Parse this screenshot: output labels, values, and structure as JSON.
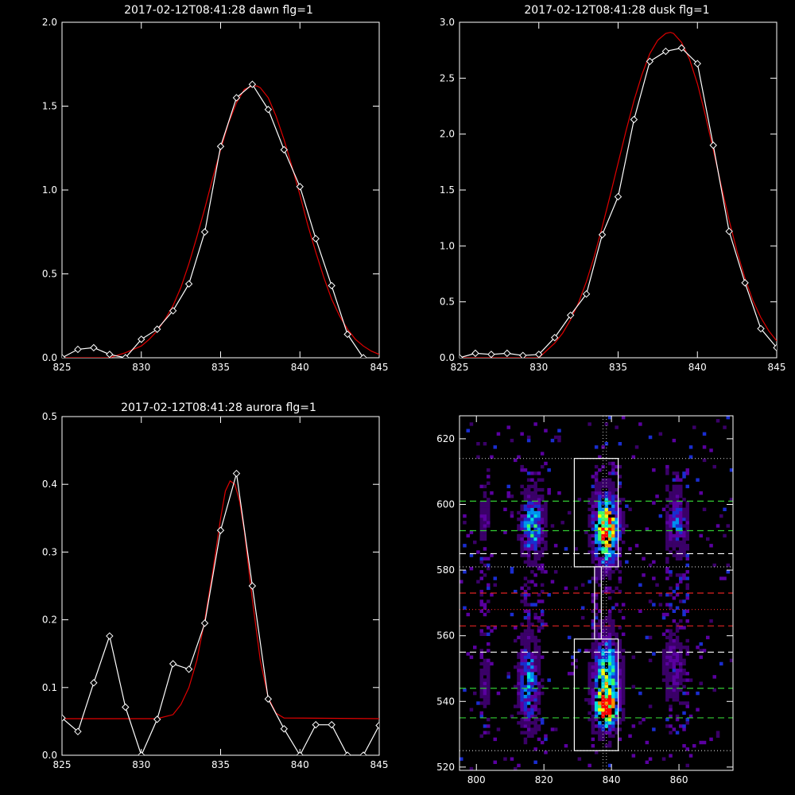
{
  "chart_data": [
    {
      "id": "dawn",
      "type": "line",
      "title": "2017-02-12T08:41:28 dawn flg=1",
      "xlim": [
        825,
        845
      ],
      "ylim": [
        0,
        2.0
      ],
      "xticks": [
        825,
        830,
        835,
        840,
        845
      ],
      "yticks": [
        0.0,
        0.5,
        1.0,
        1.5,
        2.0
      ],
      "xtick_labels": [
        "825",
        "830",
        "835",
        "840",
        "845"
      ],
      "ytick_labels": [
        "0.0",
        "0.5",
        "1.0",
        "1.5",
        "2.0"
      ],
      "series": [
        {
          "style": "observed",
          "color": "#ffffff",
          "marker": "diamond",
          "x": [
            825,
            826,
            827,
            828,
            829,
            830,
            831,
            832,
            833,
            834,
            835,
            836,
            837,
            838,
            839,
            840,
            841,
            842,
            843,
            844
          ],
          "y": [
            0.0,
            0.05,
            0.06,
            0.02,
            0.0,
            0.11,
            0.17,
            0.28,
            0.44,
            0.75,
            1.26,
            1.55,
            1.63,
            1.48,
            1.24,
            1.02,
            0.71,
            0.43,
            0.14,
            0.0
          ]
        },
        {
          "style": "fit",
          "color": "#e00000",
          "model": "gaussian",
          "x": [
            825,
            826,
            827,
            828,
            829,
            830,
            830.5,
            831,
            831.5,
            832,
            832.5,
            833,
            833.5,
            834,
            834.5,
            835,
            835.5,
            836,
            836.5,
            837,
            837.3,
            837.5,
            838,
            838.5,
            839,
            839.5,
            840,
            840.5,
            841,
            841.5,
            842,
            842.5,
            843,
            843.5,
            844,
            844.5,
            845
          ],
          "y": [
            0.0,
            0.0,
            0.0,
            0.0,
            0.03,
            0.07,
            0.11,
            0.16,
            0.23,
            0.31,
            0.42,
            0.56,
            0.72,
            0.89,
            1.07,
            1.24,
            1.4,
            1.52,
            1.6,
            1.62,
            1.62,
            1.61,
            1.55,
            1.44,
            1.3,
            1.14,
            0.97,
            0.79,
            0.63,
            0.48,
            0.35,
            0.25,
            0.17,
            0.11,
            0.07,
            0.04,
            0.02
          ]
        }
      ]
    },
    {
      "id": "dusk",
      "type": "line",
      "title": "2017-02-12T08:41:28 dusk flg=1",
      "xlim": [
        825,
        845
      ],
      "ylim": [
        0,
        3.0
      ],
      "xticks": [
        825,
        830,
        835,
        840,
        845
      ],
      "yticks": [
        0.0,
        0.5,
        1.0,
        1.5,
        2.0,
        2.5,
        3.0
      ],
      "xtick_labels": [
        "825",
        "830",
        "835",
        "840",
        "845"
      ],
      "ytick_labels": [
        "0.0",
        "0.5",
        "1.0",
        "1.5",
        "2.0",
        "2.5",
        "3.0"
      ],
      "series": [
        {
          "style": "observed",
          "color": "#ffffff",
          "marker": "diamond",
          "x": [
            825,
            826,
            827,
            828,
            829,
            830,
            831,
            832,
            833,
            834,
            835,
            836,
            837,
            838,
            839,
            840,
            841,
            842,
            843,
            844,
            845
          ],
          "y": [
            0.0,
            0.04,
            0.03,
            0.04,
            0.02,
            0.03,
            0.18,
            0.38,
            0.57,
            1.1,
            1.44,
            2.13,
            2.65,
            2.74,
            2.77,
            2.63,
            1.9,
            1.13,
            0.67,
            0.26,
            0.09
          ]
        },
        {
          "style": "fit",
          "color": "#e00000",
          "model": "gaussian",
          "x": [
            825,
            826,
            827,
            828,
            829,
            830,
            831,
            831.5,
            832,
            832.5,
            833,
            833.5,
            834,
            834.5,
            835,
            835.5,
            836,
            836.5,
            837,
            837.5,
            838,
            838.3,
            838.5,
            839,
            839.5,
            840,
            840.5,
            841,
            841.5,
            842,
            842.5,
            843,
            843.5,
            844,
            844.5,
            845
          ],
          "y": [
            0.0,
            0.0,
            0.0,
            0.0,
            0.0,
            0.0,
            0.13,
            0.22,
            0.34,
            0.49,
            0.68,
            0.91,
            1.17,
            1.45,
            1.74,
            2.03,
            2.3,
            2.53,
            2.72,
            2.84,
            2.9,
            2.91,
            2.9,
            2.82,
            2.67,
            2.45,
            2.17,
            1.86,
            1.54,
            1.23,
            0.95,
            0.71,
            0.51,
            0.36,
            0.24,
            0.15
          ]
        }
      ]
    },
    {
      "id": "aurora",
      "type": "line",
      "title": "2017-02-12T08:41:28 aurora flg=1",
      "xlim": [
        825,
        845
      ],
      "ylim": [
        0,
        0.5
      ],
      "xticks": [
        825,
        830,
        835,
        840,
        845
      ],
      "yticks": [
        0.0,
        0.1,
        0.2,
        0.3,
        0.4,
        0.5
      ],
      "xtick_labels": [
        "825",
        "830",
        "835",
        "840",
        "845"
      ],
      "ytick_labels": [
        "0.0",
        "0.1",
        "0.2",
        "0.3",
        "0.4",
        "0.5"
      ],
      "series": [
        {
          "style": "observed",
          "color": "#ffffff",
          "marker": "diamond",
          "x": [
            825,
            826,
            827,
            828,
            829,
            830,
            831,
            832,
            833,
            834,
            835,
            836,
            837,
            838,
            839,
            840,
            841,
            842,
            843,
            844,
            845
          ],
          "y": [
            0.055,
            0.035,
            0.107,
            0.176,
            0.071,
            0.0,
            0.053,
            0.135,
            0.127,
            0.195,
            0.332,
            0.416,
            0.25,
            0.083,
            0.039,
            0.0,
            0.045,
            0.045,
            0.0,
            0.0,
            0.044
          ]
        },
        {
          "style": "fit",
          "color": "#e00000",
          "model": "gaussian",
          "x": [
            825,
            831,
            832,
            832.5,
            833,
            833.5,
            834,
            834.5,
            835,
            835.3,
            835.6,
            835.9,
            836.2,
            836.5,
            837,
            837.5,
            838,
            838.5,
            839,
            845
          ],
          "y": [
            0.054,
            0.054,
            0.06,
            0.075,
            0.1,
            0.14,
            0.2,
            0.27,
            0.35,
            0.39,
            0.405,
            0.4,
            0.375,
            0.33,
            0.23,
            0.14,
            0.085,
            0.062,
            0.055,
            0.054
          ]
        }
      ]
    },
    {
      "id": "spectrogram",
      "type": "heatmap",
      "xlim": [
        795,
        876
      ],
      "ylim": [
        519,
        627
      ],
      "xticks": [
        800,
        820,
        840,
        860
      ],
      "yticks": [
        520,
        540,
        560,
        580,
        600,
        620
      ],
      "xtick_labels": [
        "800",
        "820",
        "840",
        "860"
      ],
      "ytick_labels": [
        "520",
        "540",
        "560",
        "580",
        "600",
        "620"
      ],
      "colormap": [
        "#000000",
        "#3a0068",
        "#5a00a0",
        "#1a2dd0",
        "#0090f0",
        "#00e0e0",
        "#40ff60",
        "#ffff00",
        "#ff9000",
        "#ff0000"
      ],
      "columns": [
        {
          "x": 838,
          "half_width": 4
        },
        {
          "x": 816,
          "half_width": 3
        },
        {
          "x": 859,
          "half_width": 3
        },
        {
          "x": 802,
          "half_width": 1.5
        }
      ],
      "blobs": [
        {
          "x": 838,
          "y": 592,
          "sx": 2.5,
          "sy": 7,
          "amp": 1.0
        },
        {
          "x": 838,
          "y": 546,
          "sx": 2.5,
          "sy": 9,
          "amp": 0.75
        },
        {
          "x": 838,
          "y": 537,
          "sx": 2.0,
          "sy": 3,
          "amp": 0.85
        },
        {
          "x": 816,
          "y": 593,
          "sx": 2.2,
          "sy": 6,
          "amp": 0.62
        },
        {
          "x": 815,
          "y": 545,
          "sx": 2.0,
          "sy": 9,
          "amp": 0.5
        },
        {
          "x": 859,
          "y": 594,
          "sx": 2.0,
          "sy": 6,
          "amp": 0.42
        },
        {
          "x": 858,
          "y": 550,
          "sx": 2.0,
          "sy": 7,
          "amp": 0.26
        },
        {
          "x": 802,
          "y": 595,
          "sx": 1.2,
          "sy": 5,
          "amp": 0.2
        },
        {
          "x": 802,
          "y": 545,
          "sx": 1.2,
          "sy": 5,
          "amp": 0.18
        }
      ],
      "boxes": [
        {
          "x0": 829,
          "x1": 842,
          "y0": 581,
          "y1": 614
        },
        {
          "x0": 829,
          "x1": 842,
          "y0": 525,
          "y1": 559
        },
        {
          "x0": 835,
          "x1": 837,
          "y0": 559,
          "y1": 581
        }
      ],
      "vlines_dotted": [
        837.5,
        838.5
      ],
      "hlines": [
        {
          "y": 614,
          "style": "dotted",
          "color": "#c0c0c0"
        },
        {
          "y": 601,
          "style": "dashed",
          "color": "#33cc33"
        },
        {
          "y": 592,
          "style": "dashed",
          "color": "#33cc33"
        },
        {
          "y": 585,
          "style": "dashed",
          "color": "#ffffff"
        },
        {
          "y": 581,
          "style": "dotted",
          "color": "#c0c0c0"
        },
        {
          "y": 573,
          "style": "dashed",
          "color": "#dd2222"
        },
        {
          "y": 568,
          "style": "dotted",
          "color": "#dd2222"
        },
        {
          "y": 563,
          "style": "dashed",
          "color": "#dd2222"
        },
        {
          "y": 555,
          "style": "dashed",
          "color": "#ffffff"
        },
        {
          "y": 544,
          "style": "dashed",
          "color": "#33cc33"
        },
        {
          "y": 535,
          "style": "dashed",
          "color": "#33cc33"
        },
        {
          "y": 525,
          "style": "dotted",
          "color": "#c0c0c0"
        }
      ]
    }
  ]
}
